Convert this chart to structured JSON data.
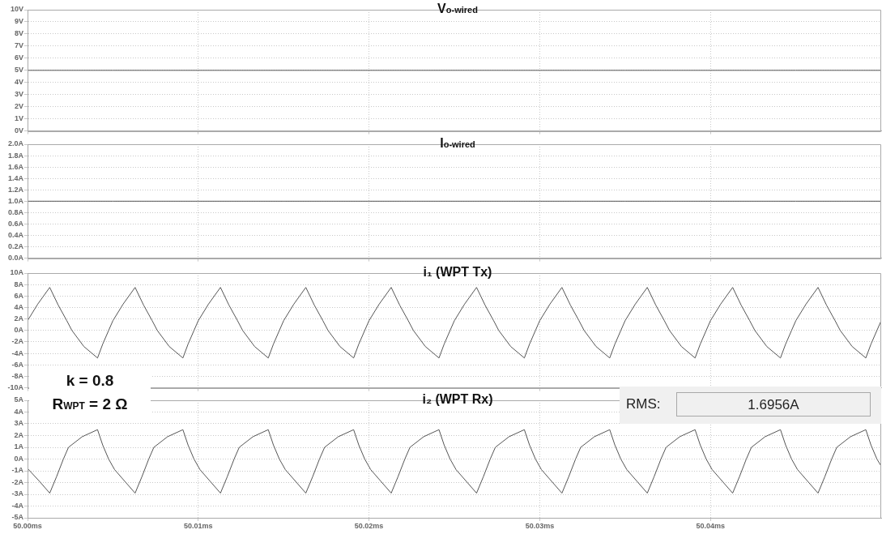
{
  "chart_data": [
    {
      "type": "line",
      "title": "V$_{o-wired}$",
      "color": "#555555",
      "grid": true,
      "tick_labels": "y",
      "x": [
        50,
        50.005,
        50.01,
        50.015,
        50.02,
        50.025,
        50.03,
        50.035,
        50.04,
        50.045,
        50.05
      ],
      "values": [
        5,
        5,
        5,
        5,
        5,
        5,
        5,
        5,
        5,
        5,
        5
      ],
      "xlim": [
        50,
        50.05
      ],
      "xticks": [
        {
          "value": 50,
          "label": null
        },
        {
          "value": 50.01,
          "label": null
        },
        {
          "value": 50.02,
          "label": null
        },
        {
          "value": 50.03,
          "label": null
        },
        {
          "value": 50.04,
          "label": null
        }
      ],
      "ylim": [
        0,
        10
      ],
      "yticks": [
        {
          "value": 0,
          "label": "0V"
        },
        {
          "value": 1,
          "label": "1V"
        },
        {
          "value": 2,
          "label": "2V"
        },
        {
          "value": 3,
          "label": "3V"
        },
        {
          "value": 4,
          "label": "4V"
        },
        {
          "value": 5,
          "label": "5V"
        },
        {
          "value": 6,
          "label": "6V"
        },
        {
          "value": 7,
          "label": "7V"
        },
        {
          "value": 8,
          "label": "8V"
        },
        {
          "value": 9,
          "label": "9V"
        },
        {
          "value": 10,
          "label": "10V"
        }
      ]
    },
    {
      "type": "line",
      "title": "I$_{o-wired}$",
      "color": "#555555",
      "grid": true,
      "tick_labels": "y",
      "x": [
        50,
        50.005,
        50.01,
        50.015,
        50.02,
        50.025,
        50.03,
        50.035,
        50.04,
        50.045,
        50.05
      ],
      "values": [
        1,
        1,
        1,
        1,
        1,
        1,
        1,
        1,
        1,
        1,
        1
      ],
      "xlim": [
        50,
        50.05
      ],
      "xticks": [
        {
          "value": 50,
          "label": null
        },
        {
          "value": 50.01,
          "label": null
        },
        {
          "value": 50.02,
          "label": null
        },
        {
          "value": 50.03,
          "label": null
        },
        {
          "value": 50.04,
          "label": null
        }
      ],
      "ylim": [
        0,
        2
      ],
      "yticks": [
        {
          "value": 0,
          "label": "0.0A"
        },
        {
          "value": 0.2,
          "label": "0.2A"
        },
        {
          "value": 0.4,
          "label": "0.4A"
        },
        {
          "value": 0.6,
          "label": "0.6A"
        },
        {
          "value": 0.8,
          "label": "0.8A"
        },
        {
          "value": 1,
          "label": "1.0A"
        },
        {
          "value": 1.2,
          "label": "1.2A"
        },
        {
          "value": 1.4,
          "label": "1.4A"
        },
        {
          "value": 1.6,
          "label": "1.6A"
        },
        {
          "value": 1.8,
          "label": "1.8A"
        },
        {
          "value": 2,
          "label": "2.0A"
        }
      ]
    },
    {
      "type": "line",
      "title": "i₁ (WPT Tx)",
      "color": "#555555",
      "grid": true,
      "tick_labels": "y",
      "x": [
        50,
        50.0006,
        50.0013,
        50.0018,
        50.0023,
        50.0026,
        50.0033,
        50.0041,
        50.0044,
        50.00475,
        50.005,
        50.0056,
        50.0063,
        50.0068,
        50.0073,
        50.0076,
        50.0083,
        50.0091,
        50.0094,
        50.00975,
        50.01,
        50.0106,
        50.0113,
        50.0118,
        50.0123,
        50.0126,
        50.0133,
        50.0141,
        50.0144,
        50.01475,
        50.015,
        50.0156,
        50.0163,
        50.0168,
        50.0173,
        50.0176,
        50.0183,
        50.0191,
        50.0194,
        50.01975,
        50.02,
        50.0206,
        50.0213,
        50.0218,
        50.0223,
        50.0226,
        50.0233,
        50.0241,
        50.0244,
        50.02475,
        50.025,
        50.0256,
        50.0263,
        50.0268,
        50.0273,
        50.0276,
        50.0283,
        50.0291,
        50.0294,
        50.02975,
        50.03,
        50.0306,
        50.0313,
        50.0318,
        50.0323,
        50.0326,
        50.0333,
        50.0341,
        50.0344,
        50.03475,
        50.035,
        50.0356,
        50.0363,
        50.0368,
        50.0373,
        50.0376,
        50.0383,
        50.0391,
        50.0394,
        50.03975,
        50.04,
        50.0406,
        50.0413,
        50.0418,
        50.0423,
        50.0426,
        50.0433,
        50.0441,
        50.0444,
        50.04475,
        50.045,
        50.0456,
        50.0463,
        50.0468,
        50.0473,
        50.0476,
        50.0483,
        50.0491,
        50.0494,
        50.04975,
        50.05
      ],
      "values": [
        1.7,
        4.6,
        7.5,
        4.4,
        1.7,
        0,
        -2.8,
        -4.8,
        -2.4,
        0,
        1.7,
        4.6,
        7.5,
        4.4,
        1.7,
        0,
        -2.8,
        -4.8,
        -2.4,
        0,
        1.7,
        4.6,
        7.5,
        4.4,
        1.7,
        0,
        -2.8,
        -4.8,
        -2.4,
        0,
        1.7,
        4.6,
        7.5,
        4.4,
        1.7,
        0,
        -2.8,
        -4.8,
        -2.4,
        0,
        1.7,
        4.6,
        7.5,
        4.4,
        1.7,
        0,
        -2.8,
        -4.8,
        -2.4,
        0,
        1.7,
        4.6,
        7.5,
        4.4,
        1.7,
        0,
        -2.8,
        -4.8,
        -2.4,
        0,
        1.7,
        4.6,
        7.5,
        4.4,
        1.7,
        0,
        -2.8,
        -4.8,
        -2.4,
        0,
        1.7,
        4.6,
        7.5,
        4.4,
        1.7,
        0,
        -2.8,
        -4.8,
        -2.4,
        0,
        1.7,
        4.6,
        7.5,
        4.4,
        1.7,
        0,
        -2.8,
        -4.8,
        -2.4,
        0,
        1.7,
        4.6,
        7.5,
        4.4,
        1.7,
        0,
        -2.8,
        -4.8,
        -2.4,
        0,
        1.7
      ],
      "xlim": [
        50,
        50.05
      ],
      "xticks": [
        {
          "value": 50,
          "label": null
        },
        {
          "value": 50.01,
          "label": null
        },
        {
          "value": 50.02,
          "label": null
        },
        {
          "value": 50.03,
          "label": null
        },
        {
          "value": 50.04,
          "label": null
        }
      ],
      "ylim": [
        -10,
        10
      ],
      "yticks": [
        {
          "value": -10,
          "label": "-10A"
        },
        {
          "value": -8,
          "label": "-8A"
        },
        {
          "value": -6,
          "label": "-6A"
        },
        {
          "value": -4,
          "label": "-4A"
        },
        {
          "value": -2,
          "label": "-2A"
        },
        {
          "value": 0,
          "label": "0A"
        },
        {
          "value": 2,
          "label": "2A"
        },
        {
          "value": 4,
          "label": "4A"
        },
        {
          "value": 6,
          "label": "6A"
        },
        {
          "value": 8,
          "label": "8A"
        },
        {
          "value": 10,
          "label": "10A"
        }
      ]
    },
    {
      "type": "line",
      "title": "i₂ (WPT Rx)",
      "color": "#555555",
      "grid": true,
      "annotations": [
        "k = 0.8",
        "R$_{WPT}$ = 2 Ω",
        "RMS:",
        "1.6956A"
      ],
      "x": [
        50,
        50.0007,
        50.0013,
        50.0017,
        50.0021,
        50.0024,
        50.0032,
        50.0041,
        50.0044,
        50.00475,
        50.0051,
        50.0057,
        50.0063,
        50.0067,
        50.0071,
        50.0074,
        50.0082,
        50.0091,
        50.0094,
        50.00975,
        50.0101,
        50.0107,
        50.0113,
        50.0117,
        50.0121,
        50.0124,
        50.0132,
        50.0141,
        50.0144,
        50.01475,
        50.0151,
        50.0157,
        50.0163,
        50.0167,
        50.0171,
        50.0174,
        50.0182,
        50.0191,
        50.0194,
        50.01975,
        50.0201,
        50.0207,
        50.0213,
        50.0217,
        50.0221,
        50.0224,
        50.0232,
        50.0241,
        50.0244,
        50.02475,
        50.0251,
        50.0257,
        50.0263,
        50.0267,
        50.0271,
        50.0274,
        50.0282,
        50.0291,
        50.0294,
        50.02975,
        50.0301,
        50.0307,
        50.0313,
        50.0317,
        50.0321,
        50.0324,
        50.0332,
        50.0341,
        50.0344,
        50.03475,
        50.0351,
        50.0357,
        50.0363,
        50.0367,
        50.0371,
        50.0374,
        50.0382,
        50.0391,
        50.0394,
        50.03975,
        50.0401,
        50.0407,
        50.0413,
        50.0417,
        50.0421,
        50.0424,
        50.0432,
        50.0441,
        50.0444,
        50.04475,
        50.0451,
        50.0457,
        50.0463,
        50.0467,
        50.0471,
        50.0474,
        50.0482,
        50.0491,
        50.0494,
        50.04975,
        50.05
      ],
      "values": [
        -0.8,
        -1.9,
        -2.9,
        -1.5,
        0,
        1,
        1.9,
        2.5,
        1.2,
        0,
        -0.9,
        -1.9,
        -2.9,
        -1.5,
        0,
        1,
        1.9,
        2.5,
        1.2,
        0,
        -0.9,
        -1.9,
        -2.9,
        -1.5,
        0,
        1,
        1.9,
        2.5,
        1.2,
        0,
        -0.9,
        -1.9,
        -2.9,
        -1.5,
        0,
        1,
        1.9,
        2.5,
        1.2,
        0,
        -0.9,
        -1.9,
        -2.9,
        -1.5,
        0,
        1,
        1.9,
        2.5,
        1.2,
        0,
        -0.9,
        -1.9,
        -2.9,
        -1.5,
        0,
        1,
        1.9,
        2.5,
        1.2,
        0,
        -0.9,
        -1.9,
        -2.9,
        -1.5,
        0,
        1,
        1.9,
        2.5,
        1.2,
        0,
        -0.9,
        -1.9,
        -2.9,
        -1.5,
        0,
        1,
        1.9,
        2.5,
        1.2,
        0,
        -0.9,
        -1.9,
        -2.9,
        -1.5,
        0,
        1,
        1.9,
        2.5,
        1.2,
        0,
        -0.9,
        -1.9,
        -2.9,
        -1.5,
        0,
        1,
        1.9,
        2.5,
        1.2,
        0,
        -0.6
      ],
      "xlim": [
        50,
        50.05
      ],
      "xticks": [
        {
          "value": 50,
          "label": "50.00ms"
        },
        {
          "value": 50.01,
          "label": "50.01ms"
        },
        {
          "value": 50.02,
          "label": "50.02ms"
        },
        {
          "value": 50.03,
          "label": "50.03ms"
        },
        {
          "value": 50.04,
          "label": "50.04ms"
        }
      ],
      "ylim": [
        -5,
        5
      ],
      "yticks": [
        {
          "value": -5,
          "label": "-5A"
        },
        {
          "value": -4,
          "label": "-4A"
        },
        {
          "value": -3,
          "label": "-3A"
        },
        {
          "value": -2,
          "label": "-2A"
        },
        {
          "value": -1,
          "label": "-1A"
        },
        {
          "value": 0,
          "label": "0A"
        },
        {
          "value": 1,
          "label": "1A"
        },
        {
          "value": 2,
          "label": "2A"
        },
        {
          "value": 3,
          "label": "3A"
        },
        {
          "value": 4,
          "label": "4A"
        },
        {
          "value": 5,
          "label": "5A"
        }
      ]
    }
  ]
}
